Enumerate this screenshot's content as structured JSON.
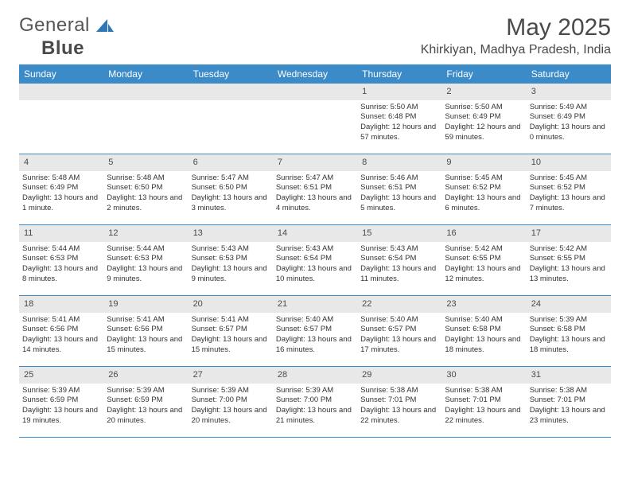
{
  "logo": {
    "word1": "General",
    "word2": "Blue"
  },
  "colors": {
    "header_bar": "#3b8bc8",
    "header_text": "#ffffff",
    "daynum_bg": "#e8e8e8",
    "text": "#333333",
    "logo_accent": "#2f77b8"
  },
  "month_title": "May 2025",
  "location": "Khirkiyan, Madhya Pradesh, India",
  "weekdays": [
    "Sunday",
    "Monday",
    "Tuesday",
    "Wednesday",
    "Thursday",
    "Friday",
    "Saturday"
  ],
  "weeks": [
    [
      {
        "n": "",
        "info": ""
      },
      {
        "n": "",
        "info": ""
      },
      {
        "n": "",
        "info": ""
      },
      {
        "n": "",
        "info": ""
      },
      {
        "n": "1",
        "info": "Sunrise: 5:50 AM\nSunset: 6:48 PM\nDaylight: 12 hours and 57 minutes."
      },
      {
        "n": "2",
        "info": "Sunrise: 5:50 AM\nSunset: 6:49 PM\nDaylight: 12 hours and 59 minutes."
      },
      {
        "n": "3",
        "info": "Sunrise: 5:49 AM\nSunset: 6:49 PM\nDaylight: 13 hours and 0 minutes."
      }
    ],
    [
      {
        "n": "4",
        "info": "Sunrise: 5:48 AM\nSunset: 6:49 PM\nDaylight: 13 hours and 1 minute."
      },
      {
        "n": "5",
        "info": "Sunrise: 5:48 AM\nSunset: 6:50 PM\nDaylight: 13 hours and 2 minutes."
      },
      {
        "n": "6",
        "info": "Sunrise: 5:47 AM\nSunset: 6:50 PM\nDaylight: 13 hours and 3 minutes."
      },
      {
        "n": "7",
        "info": "Sunrise: 5:47 AM\nSunset: 6:51 PM\nDaylight: 13 hours and 4 minutes."
      },
      {
        "n": "8",
        "info": "Sunrise: 5:46 AM\nSunset: 6:51 PM\nDaylight: 13 hours and 5 minutes."
      },
      {
        "n": "9",
        "info": "Sunrise: 5:45 AM\nSunset: 6:52 PM\nDaylight: 13 hours and 6 minutes."
      },
      {
        "n": "10",
        "info": "Sunrise: 5:45 AM\nSunset: 6:52 PM\nDaylight: 13 hours and 7 minutes."
      }
    ],
    [
      {
        "n": "11",
        "info": "Sunrise: 5:44 AM\nSunset: 6:53 PM\nDaylight: 13 hours and 8 minutes."
      },
      {
        "n": "12",
        "info": "Sunrise: 5:44 AM\nSunset: 6:53 PM\nDaylight: 13 hours and 9 minutes."
      },
      {
        "n": "13",
        "info": "Sunrise: 5:43 AM\nSunset: 6:53 PM\nDaylight: 13 hours and 9 minutes."
      },
      {
        "n": "14",
        "info": "Sunrise: 5:43 AM\nSunset: 6:54 PM\nDaylight: 13 hours and 10 minutes."
      },
      {
        "n": "15",
        "info": "Sunrise: 5:43 AM\nSunset: 6:54 PM\nDaylight: 13 hours and 11 minutes."
      },
      {
        "n": "16",
        "info": "Sunrise: 5:42 AM\nSunset: 6:55 PM\nDaylight: 13 hours and 12 minutes."
      },
      {
        "n": "17",
        "info": "Sunrise: 5:42 AM\nSunset: 6:55 PM\nDaylight: 13 hours and 13 minutes."
      }
    ],
    [
      {
        "n": "18",
        "info": "Sunrise: 5:41 AM\nSunset: 6:56 PM\nDaylight: 13 hours and 14 minutes."
      },
      {
        "n": "19",
        "info": "Sunrise: 5:41 AM\nSunset: 6:56 PM\nDaylight: 13 hours and 15 minutes."
      },
      {
        "n": "20",
        "info": "Sunrise: 5:41 AM\nSunset: 6:57 PM\nDaylight: 13 hours and 15 minutes."
      },
      {
        "n": "21",
        "info": "Sunrise: 5:40 AM\nSunset: 6:57 PM\nDaylight: 13 hours and 16 minutes."
      },
      {
        "n": "22",
        "info": "Sunrise: 5:40 AM\nSunset: 6:57 PM\nDaylight: 13 hours and 17 minutes."
      },
      {
        "n": "23",
        "info": "Sunrise: 5:40 AM\nSunset: 6:58 PM\nDaylight: 13 hours and 18 minutes."
      },
      {
        "n": "24",
        "info": "Sunrise: 5:39 AM\nSunset: 6:58 PM\nDaylight: 13 hours and 18 minutes."
      }
    ],
    [
      {
        "n": "25",
        "info": "Sunrise: 5:39 AM\nSunset: 6:59 PM\nDaylight: 13 hours and 19 minutes."
      },
      {
        "n": "26",
        "info": "Sunrise: 5:39 AM\nSunset: 6:59 PM\nDaylight: 13 hours and 20 minutes."
      },
      {
        "n": "27",
        "info": "Sunrise: 5:39 AM\nSunset: 7:00 PM\nDaylight: 13 hours and 20 minutes."
      },
      {
        "n": "28",
        "info": "Sunrise: 5:39 AM\nSunset: 7:00 PM\nDaylight: 13 hours and 21 minutes."
      },
      {
        "n": "29",
        "info": "Sunrise: 5:38 AM\nSunset: 7:01 PM\nDaylight: 13 hours and 22 minutes."
      },
      {
        "n": "30",
        "info": "Sunrise: 5:38 AM\nSunset: 7:01 PM\nDaylight: 13 hours and 22 minutes."
      },
      {
        "n": "31",
        "info": "Sunrise: 5:38 AM\nSunset: 7:01 PM\nDaylight: 13 hours and 23 minutes."
      }
    ]
  ]
}
